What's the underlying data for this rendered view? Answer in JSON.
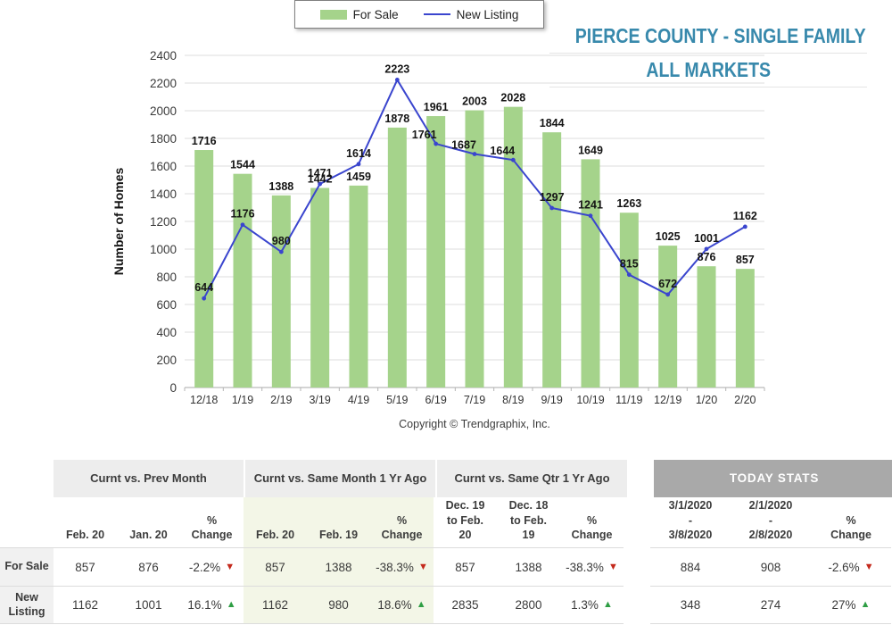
{
  "title": {
    "line1": "PIERCE COUNTY - SINGLE FAMILY",
    "line2": "ALL MARKETS",
    "color": "#3889AC"
  },
  "legend": {
    "items": [
      {
        "label": "For Sale",
        "swatch": "bar",
        "color": "#A5D38B"
      },
      {
        "label": "New Listing",
        "swatch": "line",
        "color": "#3A45CE"
      }
    ]
  },
  "chart_data": {
    "type": "bar",
    "categories": [
      "12/18",
      "1/19",
      "2/19",
      "3/19",
      "4/19",
      "5/19",
      "6/19",
      "7/19",
      "8/19",
      "9/19",
      "10/19",
      "11/19",
      "12/19",
      "1/20",
      "2/20"
    ],
    "series": [
      {
        "name": "For Sale",
        "type": "bar",
        "color": "#A5D38B",
        "values": [
          1716,
          1544,
          1388,
          1442,
          1459,
          1878,
          1961,
          2003,
          2028,
          1844,
          1649,
          1263,
          1025,
          876,
          857
        ]
      },
      {
        "name": "New Listing",
        "type": "line",
        "color": "#3A45CE",
        "values": [
          644,
          1176,
          980,
          1471,
          1614,
          2223,
          1761,
          1687,
          1644,
          1297,
          1241,
          815,
          672,
          1001,
          1162
        ]
      }
    ],
    "xlabel": "",
    "ylabel": "Number of Homes",
    "ylim": [
      0,
      2400
    ],
    "ytick": 200,
    "grid": "horizontal",
    "legend_position": "top-center",
    "footer": "Copyright © Trendgraphix, Inc.",
    "label_offsets": {
      "line": [
        [
          0,
          0
        ],
        [
          0,
          0
        ],
        [
          0,
          0
        ],
        [
          0,
          0
        ],
        [
          0,
          0
        ],
        [
          0,
          0
        ],
        [
          -13,
          2
        ],
        [
          -12,
          2
        ],
        [
          -12,
          2
        ],
        [
          0,
          0
        ],
        [
          0,
          0
        ],
        [
          0,
          0
        ],
        [
          0,
          0
        ],
        [
          0,
          0
        ],
        [
          0,
          0
        ]
      ]
    }
  },
  "table": {
    "groups": [
      {
        "title": "Curnt vs. Prev Month",
        "cols": [
          "Feb. 20",
          "Jan. 20",
          "%\nChange"
        ]
      },
      {
        "title": "Curnt vs. Same Month 1 Yr Ago",
        "cols": [
          "Feb. 20",
          "Feb. 19",
          "%\nChange"
        ]
      },
      {
        "title": "Curnt vs. Same Qtr 1 Yr Ago",
        "cols": [
          "Dec. 19\nto Feb.\n20",
          "Dec. 18\nto Feb.\n19",
          "%\nChange"
        ]
      },
      {
        "title": "TODAY STATS",
        "cols": [
          "3/1/2020\n-\n3/8/2020",
          "2/1/2020\n-\n2/8/2020",
          "%\nChange"
        ]
      }
    ],
    "rows": [
      {
        "label": "For Sale",
        "cells": [
          "857",
          "876",
          "-2.2%",
          "857",
          "1388",
          "-38.3%",
          "857",
          "1388",
          "-38.3%",
          "884",
          "908",
          "-2.6%"
        ],
        "dirs": [
          "down",
          "down",
          "down",
          "down"
        ]
      },
      {
        "label": "New Listing",
        "cells": [
          "1162",
          "1001",
          "16.1%",
          "1162",
          "980",
          "18.6%",
          "2835",
          "2800",
          "1.3%",
          "348",
          "274",
          "27%"
        ],
        "dirs": [
          "up",
          "up",
          "up",
          "up"
        ]
      }
    ],
    "trend_colors": {
      "up": "#2e9e44",
      "down": "#c4291c"
    }
  }
}
